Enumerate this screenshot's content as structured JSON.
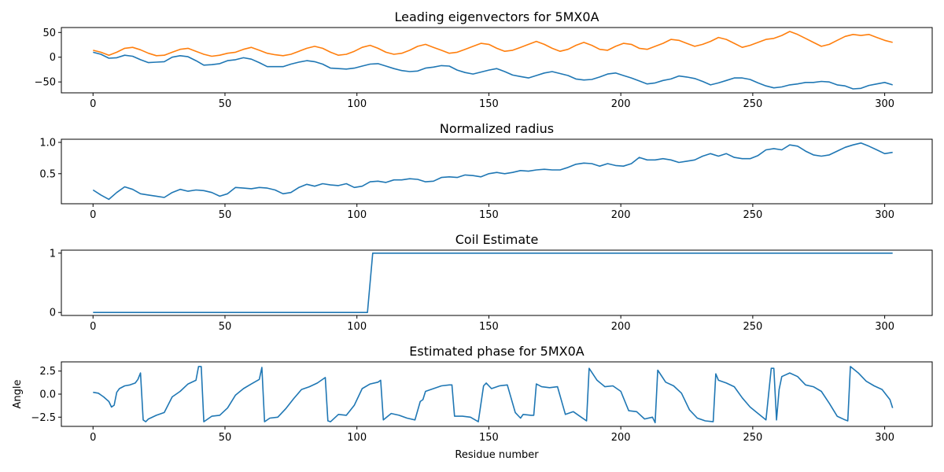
{
  "chart_data": [
    {
      "type": "line",
      "title": "Leading eigenvectors for 5MX0A",
      "xlabel": "",
      "ylabel": "",
      "xlim": [
        -12,
        318
      ],
      "ylim": [
        -72,
        60
      ],
      "xticks": [
        0,
        50,
        100,
        150,
        200,
        250,
        300
      ],
      "yticks": [
        50,
        0,
        -50
      ],
      "colors": [
        "#1f77b4",
        "#ff7f0e"
      ],
      "series": [
        {
          "x": [
            0,
            3,
            6,
            9,
            12,
            15,
            18,
            21,
            24,
            27,
            30,
            33,
            36,
            39,
            42,
            45,
            48,
            51,
            54,
            57,
            60,
            63,
            66,
            69,
            72,
            75,
            78,
            81,
            84,
            87,
            90,
            93,
            96,
            99,
            102,
            105,
            108,
            111,
            114,
            117,
            120,
            123,
            126,
            129,
            132,
            135,
            138,
            141,
            144,
            147,
            150,
            153,
            156,
            159,
            162,
            165,
            168,
            171,
            174,
            177,
            180,
            183,
            186,
            189,
            192,
            195,
            198,
            201,
            204,
            207,
            210,
            213,
            216,
            219,
            222,
            225,
            228,
            231,
            234,
            237,
            240,
            243,
            246,
            249,
            252,
            255,
            258,
            261,
            264,
            267,
            270,
            273,
            276,
            279,
            282,
            285,
            288,
            291,
            294,
            297,
            300,
            303
          ],
          "y": [
            10,
            6,
            -2,
            -1,
            4,
            2,
            -5,
            -11,
            -10,
            -9,
            0,
            3,
            1,
            -7,
            -16,
            -15,
            -13,
            -7,
            -5,
            -1,
            -4,
            -11,
            -19,
            -19,
            -19,
            -14,
            -10,
            -7,
            -9,
            -14,
            -22,
            -23,
            -24,
            -22,
            -18,
            -14,
            -13,
            -18,
            -23,
            -27,
            -29,
            -28,
            -22,
            -20,
            -17,
            -18,
            -26,
            -31,
            -34,
            -30,
            -26,
            -23,
            -29,
            -36,
            -39,
            -42,
            -37,
            -32,
            -29,
            -33,
            -37,
            -44,
            -46,
            -45,
            -40,
            -34,
            -32,
            -37,
            -42,
            -48,
            -54,
            -52,
            -47,
            -44,
            -38,
            -40,
            -43,
            -49,
            -56,
            -52,
            -47,
            -42,
            -42,
            -45,
            -52,
            -58,
            -62,
            -60,
            -56,
            -54,
            -51,
            -51,
            -49,
            -50,
            -56,
            -58,
            -64,
            -63,
            -57,
            -54,
            -51,
            -56
          ]
        },
        {
          "x": [
            0,
            3,
            6,
            9,
            12,
            15,
            18,
            21,
            24,
            27,
            30,
            33,
            36,
            39,
            42,
            45,
            48,
            51,
            54,
            57,
            60,
            63,
            66,
            69,
            72,
            75,
            78,
            81,
            84,
            87,
            90,
            93,
            96,
            99,
            102,
            105,
            108,
            111,
            114,
            117,
            120,
            123,
            126,
            129,
            132,
            135,
            138,
            141,
            144,
            147,
            150,
            153,
            156,
            159,
            162,
            165,
            168,
            171,
            174,
            177,
            180,
            183,
            186,
            189,
            192,
            195,
            198,
            201,
            204,
            207,
            210,
            213,
            216,
            219,
            222,
            225,
            228,
            231,
            234,
            237,
            240,
            243,
            246,
            249,
            252,
            255,
            258,
            261,
            264,
            267,
            270,
            273,
            276,
            279,
            282,
            285,
            288,
            291,
            294,
            297,
            300,
            303
          ],
          "y": [
            14,
            10,
            4,
            10,
            18,
            20,
            15,
            8,
            3,
            4,
            10,
            16,
            18,
            12,
            6,
            2,
            4,
            8,
            10,
            16,
            20,
            14,
            8,
            5,
            3,
            6,
            12,
            18,
            22,
            18,
            10,
            4,
            6,
            12,
            20,
            24,
            18,
            10,
            6,
            8,
            14,
            22,
            26,
            20,
            14,
            8,
            10,
            16,
            22,
            28,
            26,
            18,
            12,
            14,
            20,
            26,
            32,
            26,
            18,
            12,
            16,
            24,
            30,
            24,
            16,
            14,
            22,
            28,
            26,
            18,
            16,
            22,
            28,
            36,
            34,
            28,
            22,
            26,
            32,
            40,
            36,
            28,
            20,
            24,
            30,
            36,
            38,
            44,
            52,
            46,
            38,
            30,
            22,
            26,
            34,
            42,
            46,
            44,
            46,
            40,
            34,
            30
          ]
        }
      ]
    },
    {
      "type": "line",
      "title": "Normalized radius",
      "xlabel": "",
      "ylabel": "",
      "xlim": [
        -12,
        318
      ],
      "ylim": [
        0.02,
        1.05
      ],
      "xticks": [
        0,
        50,
        100,
        150,
        200,
        250,
        300
      ],
      "yticks": [
        1.0,
        0.5
      ],
      "colors": [
        "#1f77b4"
      ],
      "series": [
        {
          "x": [
            0,
            3,
            6,
            9,
            12,
            15,
            18,
            21,
            24,
            27,
            30,
            33,
            36,
            39,
            42,
            45,
            48,
            51,
            54,
            57,
            60,
            63,
            66,
            69,
            72,
            75,
            78,
            81,
            84,
            87,
            90,
            93,
            96,
            99,
            102,
            105,
            108,
            111,
            114,
            117,
            120,
            123,
            126,
            129,
            132,
            135,
            138,
            141,
            144,
            147,
            150,
            153,
            156,
            159,
            162,
            165,
            168,
            171,
            174,
            177,
            180,
            183,
            186,
            189,
            192,
            195,
            198,
            201,
            204,
            207,
            210,
            213,
            216,
            219,
            222,
            225,
            228,
            231,
            234,
            237,
            240,
            243,
            246,
            249,
            252,
            255,
            258,
            261,
            264,
            267,
            270,
            273,
            276,
            279,
            282,
            285,
            288,
            291,
            294,
            297,
            300,
            303
          ],
          "y": [
            0.24,
            0.16,
            0.09,
            0.2,
            0.29,
            0.25,
            0.18,
            0.16,
            0.14,
            0.12,
            0.2,
            0.25,
            0.22,
            0.24,
            0.23,
            0.2,
            0.14,
            0.18,
            0.28,
            0.27,
            0.26,
            0.28,
            0.27,
            0.24,
            0.18,
            0.2,
            0.28,
            0.33,
            0.3,
            0.34,
            0.32,
            0.31,
            0.34,
            0.28,
            0.3,
            0.37,
            0.38,
            0.36,
            0.4,
            0.4,
            0.42,
            0.41,
            0.37,
            0.38,
            0.44,
            0.45,
            0.44,
            0.48,
            0.47,
            0.45,
            0.5,
            0.52,
            0.5,
            0.52,
            0.55,
            0.54,
            0.56,
            0.57,
            0.56,
            0.56,
            0.6,
            0.65,
            0.67,
            0.66,
            0.62,
            0.66,
            0.63,
            0.62,
            0.66,
            0.76,
            0.72,
            0.72,
            0.74,
            0.72,
            0.68,
            0.7,
            0.72,
            0.78,
            0.82,
            0.78,
            0.82,
            0.76,
            0.74,
            0.74,
            0.79,
            0.88,
            0.9,
            0.88,
            0.96,
            0.94,
            0.86,
            0.8,
            0.78,
            0.8,
            0.86,
            0.92,
            0.96,
            0.99,
            0.94,
            0.88,
            0.82,
            0.84
          ]
        }
      ]
    },
    {
      "type": "line",
      "title": "Coil Estimate",
      "xlabel": "",
      "ylabel": "",
      "xlim": [
        -12,
        318
      ],
      "ylim": [
        -0.05,
        1.05
      ],
      "xticks": [
        0,
        50,
        100,
        150,
        200,
        250,
        300
      ],
      "yticks": [
        1,
        0
      ],
      "colors": [
        "#1f77b4"
      ],
      "series": [
        {
          "x": [
            0,
            104,
            106,
            303
          ],
          "y": [
            0,
            0,
            1,
            1
          ]
        }
      ]
    },
    {
      "type": "line",
      "title": "Estimated phase for 5MX0A",
      "xlabel": "Residue number",
      "ylabel": "Angle",
      "xlim": [
        -12,
        318
      ],
      "ylim": [
        -3.5,
        3.5
      ],
      "xticks": [
        0,
        50,
        100,
        150,
        200,
        250,
        300
      ],
      "yticks": [
        2.5,
        0.0,
        -2.5
      ],
      "colors": [
        "#1f77b4"
      ],
      "series": [
        {
          "x": [
            0,
            2,
            4,
            6,
            7,
            8,
            9,
            10,
            12,
            14,
            16,
            17,
            18,
            19,
            20,
            21,
            24,
            27,
            30,
            33,
            36,
            39,
            40,
            41,
            42,
            45,
            48,
            51,
            54,
            57,
            60,
            63,
            64,
            65,
            67,
            70,
            73,
            76,
            79,
            82,
            85,
            88,
            89,
            90,
            93,
            96,
            99,
            102,
            105,
            108,
            109,
            110,
            113,
            116,
            119,
            122,
            124,
            125,
            126,
            129,
            132,
            135,
            136,
            137,
            140,
            143,
            146,
            148,
            149,
            151,
            154,
            157,
            160,
            162,
            163,
            166,
            167,
            168,
            170,
            173,
            176,
            179,
            182,
            185,
            187,
            188,
            191,
            194,
            197,
            200,
            203,
            206,
            209,
            212,
            213,
            214,
            217,
            220,
            223,
            226,
            229,
            232,
            235,
            236,
            237,
            240,
            243,
            246,
            249,
            252,
            255,
            257,
            258,
            259,
            260,
            261,
            264,
            267,
            270,
            273,
            276,
            279,
            282,
            285,
            286,
            287,
            290,
            293,
            296,
            299,
            302,
            303
          ],
          "y": [
            0.2,
            0.1,
            -0.3,
            -0.8,
            -1.4,
            -1.2,
            0.2,
            0.6,
            0.9,
            1.0,
            1.2,
            1.6,
            2.3,
            -2.8,
            -3.0,
            -2.7,
            -2.3,
            -2.0,
            -0.3,
            0.3,
            1.1,
            1.5,
            3.0,
            3.0,
            -3.0,
            -2.4,
            -2.3,
            -1.5,
            -0.1,
            0.6,
            1.1,
            1.6,
            2.9,
            -3.0,
            -2.6,
            -2.5,
            -1.6,
            -0.5,
            0.5,
            0.8,
            1.2,
            1.8,
            -2.9,
            -3.0,
            -2.2,
            -2.3,
            -1.2,
            0.6,
            1.1,
            1.3,
            1.5,
            -2.8,
            -2.1,
            -2.3,
            -2.6,
            -2.8,
            -0.8,
            -0.6,
            0.3,
            0.6,
            0.9,
            1.0,
            1.0,
            -2.4,
            -2.4,
            -2.5,
            -3.0,
            0.9,
            1.2,
            0.6,
            0.9,
            1.0,
            -2.0,
            -2.6,
            -2.2,
            -2.3,
            -2.3,
            1.1,
            0.8,
            0.7,
            0.8,
            -2.2,
            -1.9,
            -2.5,
            -2.9,
            2.8,
            1.5,
            0.8,
            0.9,
            0.3,
            -1.8,
            -1.9,
            -2.7,
            -2.5,
            -3.1,
            2.6,
            1.3,
            0.9,
            0.1,
            -1.7,
            -2.6,
            -2.9,
            -3.0,
            2.2,
            1.5,
            1.2,
            0.8,
            -0.4,
            -1.4,
            -2.1,
            -2.8,
            2.8,
            2.8,
            -2.8,
            0.5,
            1.9,
            2.3,
            1.9,
            1.0,
            0.8,
            0.3,
            -1.0,
            -2.4,
            -2.8,
            -2.9,
            3.0,
            2.3,
            1.4,
            0.9,
            0.5,
            -0.6,
            -1.5
          ]
        }
      ]
    }
  ]
}
